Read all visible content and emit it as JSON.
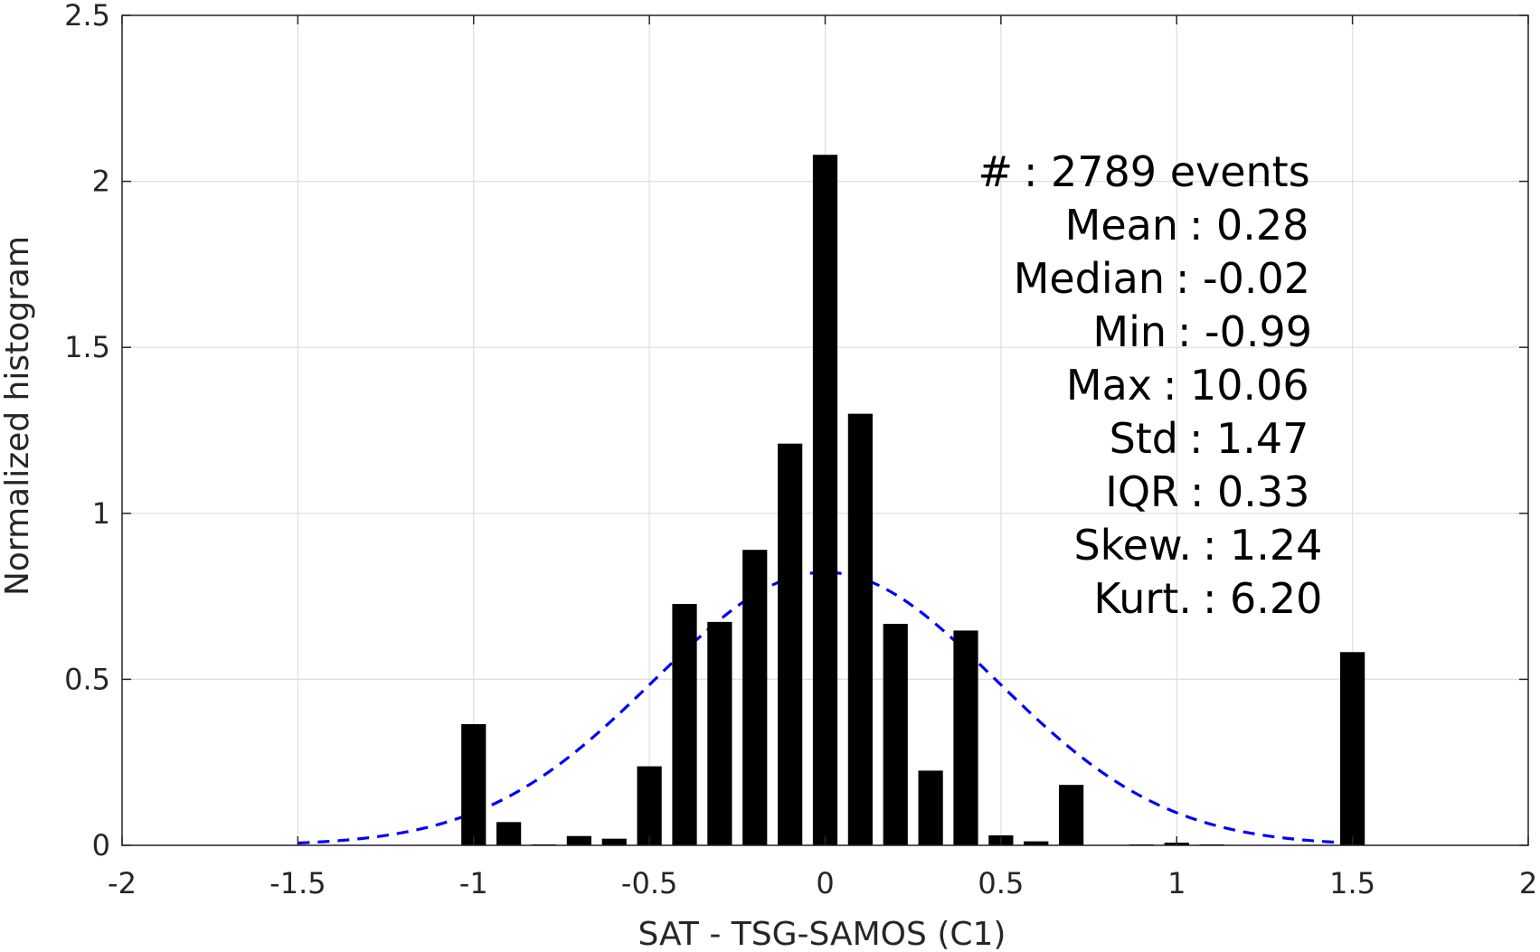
{
  "chart_data": {
    "type": "bar",
    "xlabel": "SAT - TSG-SAMOS (C1)",
    "ylabel": "Normalized histogram",
    "xlim": [
      -2,
      2
    ],
    "ylim": [
      0,
      2.5
    ],
    "xticks": [
      -2,
      -1.5,
      -1,
      -0.5,
      0,
      0.5,
      1,
      1.5,
      2
    ],
    "xtick_labels": [
      "-2",
      "-1.5",
      "-1",
      "-0.5",
      "0",
      "0.5",
      "1",
      "1.5",
      "2"
    ],
    "yticks": [
      0,
      0.5,
      1,
      1.5,
      2,
      2.5
    ],
    "ytick_labels": [
      "0",
      "0.5",
      "1",
      "1.5",
      "2",
      "2.5"
    ],
    "grid": true,
    "bar_width": 0.07,
    "bars": [
      {
        "x": -1.0,
        "y": 0.365
      },
      {
        "x": -0.9,
        "y": 0.07
      },
      {
        "x": -0.8,
        "y": 0.003
      },
      {
        "x": -0.7,
        "y": 0.028
      },
      {
        "x": -0.6,
        "y": 0.02
      },
      {
        "x": -0.5,
        "y": 0.238
      },
      {
        "x": -0.4,
        "y": 0.727
      },
      {
        "x": -0.3,
        "y": 0.673
      },
      {
        "x": -0.2,
        "y": 0.89
      },
      {
        "x": -0.1,
        "y": 1.21
      },
      {
        "x": 0.0,
        "y": 2.08
      },
      {
        "x": 0.1,
        "y": 1.3
      },
      {
        "x": 0.2,
        "y": 0.667
      },
      {
        "x": 0.3,
        "y": 0.225
      },
      {
        "x": 0.4,
        "y": 0.647
      },
      {
        "x": 0.5,
        "y": 0.03
      },
      {
        "x": 0.6,
        "y": 0.012
      },
      {
        "x": 0.7,
        "y": 0.182
      },
      {
        "x": 0.9,
        "y": 0.003
      },
      {
        "x": 1.0,
        "y": 0.008
      },
      {
        "x": 1.1,
        "y": 0.003
      },
      {
        "x": 1.5,
        "y": 0.582
      }
    ],
    "bar_color": "#000000",
    "gaussian": {
      "x_range": [
        -1.5,
        1.5
      ],
      "mean": 0.0,
      "std": 0.485,
      "color": "#0000ff",
      "style": "dashed"
    },
    "stats": [
      {
        "label": "#",
        "sep": ":",
        "value": "2789 events"
      },
      {
        "label": "Mean",
        "sep": ":",
        "value": "0.28"
      },
      {
        "label": "Median",
        "sep": ":",
        "value": "-0.02"
      },
      {
        "label": "Min",
        "sep": ":",
        "value": "-0.99"
      },
      {
        "label": "Max",
        "sep": ":",
        "value": "10.06"
      },
      {
        "label": "Std",
        "sep": ":",
        "value": "1.47"
      },
      {
        "label": "IQR",
        "sep": ":",
        "value": "0.33"
      },
      {
        "label": "Skew.",
        "sep": ":",
        "value": "1.24"
      },
      {
        "label": "Kurt.",
        "sep": ":",
        "value": "6.20"
      }
    ]
  }
}
